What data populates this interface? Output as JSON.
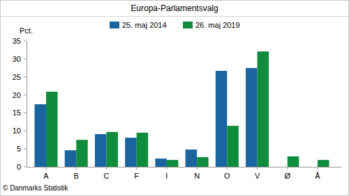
{
  "chart_data": {
    "type": "bar",
    "title": "Europa-Parlamentsvalg",
    "y_label": "Pct.",
    "source": "© Danmarks Statistik",
    "categories": [
      "A",
      "B",
      "C",
      "F",
      "I",
      "N",
      "O",
      "V",
      "Ø",
      "Å"
    ],
    "series": [
      {
        "name": "25. maj 2014",
        "color": "#1a64a0",
        "values": [
          17.4,
          4.6,
          9.1,
          8.1,
          2.3,
          4.8,
          26.7,
          27.5,
          null,
          null
        ]
      },
      {
        "name": "26. maj 2019",
        "color": "#0f8c3c",
        "values": [
          20.9,
          7.5,
          9.7,
          9.5,
          1.9,
          2.7,
          11.4,
          32.1,
          2.9,
          1.9
        ]
      }
    ],
    "ylim": [
      0,
      35
    ],
    "yticks": [
      0,
      5,
      10,
      15,
      20,
      25,
      30,
      35
    ],
    "grid": false,
    "legend": "top"
  }
}
